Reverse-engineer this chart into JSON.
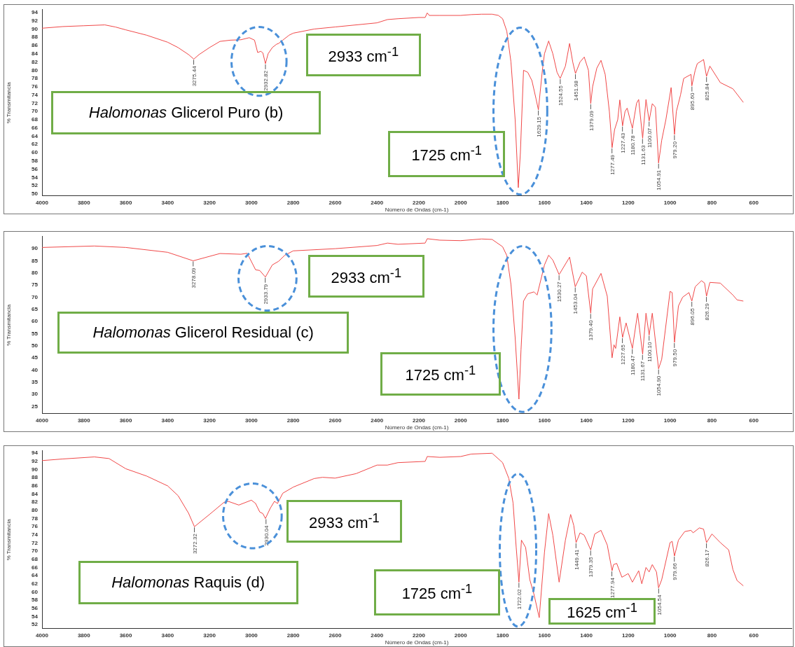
{
  "chart_data": [
    {
      "type": "line",
      "xlabel": "Número de Ondas (cm-1)",
      "ylabel": "% Transmitancia",
      "xlim": [
        4000,
        420
      ],
      "ylim": [
        49.5,
        94.7
      ],
      "xticks": [
        4000,
        3800,
        3600,
        3400,
        3200,
        3000,
        2800,
        2600,
        2400,
        2200,
        2000,
        1800,
        1600,
        1400,
        1200,
        1000,
        800,
        600
      ],
      "yticks": [
        50,
        52,
        54,
        56,
        58,
        60,
        62,
        64,
        66,
        68,
        70,
        72,
        74,
        76,
        78,
        80,
        82,
        84,
        86,
        88,
        90,
        92,
        94
      ],
      "series": [
        {
          "color": "#f04848",
          "x": [
            4000,
            3900,
            3800,
            3700,
            3650,
            3600,
            3500,
            3400,
            3350,
            3300,
            3275,
            3250,
            3200,
            3150,
            3100,
            3050,
            3010,
            2985,
            2970,
            2955,
            2945,
            2933,
            2920,
            2900,
            2880,
            2870,
            2850,
            2820,
            2800,
            2700,
            2600,
            2400,
            2350,
            2300,
            2200,
            2170,
            2160,
            2150,
            2100,
            2000,
            1950,
            1900,
            1850,
            1820,
            1800,
            1780,
            1760,
            1740,
            1725,
            1715,
            1700,
            1680,
            1660,
            1640,
            1629,
            1610,
            1600,
            1580,
            1560,
            1540,
            1525,
            1500,
            1480,
            1465,
            1452,
            1430,
            1410,
            1390,
            1379,
            1370,
            1350,
            1330,
            1310,
            1290,
            1277,
            1265,
            1250,
            1240,
            1227,
            1215,
            1205,
            1180,
            1160,
            1150,
            1131,
            1115,
            1100,
            1085,
            1070,
            1055,
            1040,
            1020,
            995,
            979,
            970,
            950,
            935,
            900,
            896,
            880,
            870,
            840,
            826,
            810,
            760,
            700,
            650
          ],
          "values": [
            90.2,
            90.6,
            90.8,
            91,
            90.5,
            89.8,
            88.5,
            86.8,
            85.5,
            83.8,
            82.7,
            83.8,
            85.5,
            87,
            87.3,
            87.4,
            87.9,
            87.3,
            84.3,
            84.6,
            84.2,
            81.6,
            84,
            85.5,
            86.3,
            86.5,
            87.3,
            88.5,
            89,
            90,
            90.5,
            91.5,
            92.3,
            92.5,
            92.8,
            92.8,
            93.9,
            93.3,
            93.3,
            93.3,
            93.5,
            93.6,
            93.6,
            93.3,
            92.5,
            89.5,
            82,
            68,
            51.5,
            60,
            80,
            79.5,
            77.5,
            73,
            70.4,
            80,
            84,
            87.1,
            84,
            79.5,
            78,
            81,
            86.5,
            82,
            79.2,
            82,
            83.2,
            80,
            71.9,
            76,
            80.5,
            82.4,
            79,
            70,
            61.2,
            65.6,
            68,
            72.8,
            66.5,
            70,
            70.8,
            65.9,
            72,
            72.9,
            63.5,
            72.9,
            67.7,
            71.9,
            71,
            57.5,
            63,
            68,
            75.8,
            64.4,
            70,
            74,
            78,
            79,
            76.2,
            80,
            81.6,
            82.6,
            78.5,
            81,
            77,
            75.5,
            72.2
          ]
        }
      ],
      "annotations": [
        "2933 cm$^{-1}$",
        "Halomonas Glicerol Puro (b)",
        "1725 cm$^{-1}$",
        {
          "text": "3275.44",
          "x": 3275.44,
          "y": 82.7
        },
        {
          "text": "2932.82",
          "x": 2932.82,
          "y": 81.6
        },
        {
          "text": "1629.15",
          "x": 1629.15,
          "y": 70.4
        },
        {
          "text": "1524.55",
          "x": 1524.55,
          "y": 78
        },
        {
          "text": "1451.98",
          "x": 1451.98,
          "y": 79.2
        },
        {
          "text": "1379.09",
          "x": 1379.09,
          "y": 71.9
        },
        {
          "text": "1277.49",
          "x": 1277.49,
          "y": 61.2
        },
        {
          "text": "1227.43",
          "x": 1227.43,
          "y": 66.5
        },
        {
          "text": "1180.78",
          "x": 1180.78,
          "y": 65.9
        },
        {
          "text": "1131.63",
          "x": 1131.63,
          "y": 63.5
        },
        {
          "text": "1100.07",
          "x": 1100.07,
          "y": 67.7
        },
        {
          "text": "1054.91",
          "x": 1054.91,
          "y": 57.5
        },
        {
          "text": "979.20",
          "x": 979.2,
          "y": 64.4
        },
        {
          "text": "895.60",
          "x": 895.6,
          "y": 76.2
        },
        {
          "text": "825.84",
          "x": 825.84,
          "y": 78.5
        }
      ]
    },
    {
      "type": "line",
      "xlabel": "Número de Ondas (cm-1)",
      "ylabel": "% Transmitancia",
      "xlim": [
        4000,
        420
      ],
      "ylim": [
        22,
        95
      ],
      "xticks": [
        4000,
        3800,
        3600,
        3400,
        3200,
        3000,
        2800,
        2600,
        2400,
        2200,
        2000,
        1800,
        1600,
        1400,
        1200,
        1000,
        800,
        600
      ],
      "yticks": [
        25,
        30,
        35,
        40,
        45,
        50,
        55,
        60,
        65,
        70,
        75,
        80,
        85,
        90
      ],
      "series": [
        {
          "color": "#f04848",
          "x": [
            4000,
            3750,
            3600,
            3400,
            3278,
            3150,
            3050,
            3020,
            2980,
            2960,
            2933,
            2900,
            2870,
            2840,
            2800,
            2600,
            2400,
            2350,
            2300,
            2170,
            2160,
            2100,
            2000,
            1900,
            1850,
            1800,
            1780,
            1760,
            1740,
            1722,
            1712,
            1700,
            1680,
            1650,
            1635,
            1600,
            1580,
            1560,
            1530,
            1480,
            1453,
            1420,
            1400,
            1379,
            1370,
            1330,
            1300,
            1277,
            1268,
            1260,
            1240,
            1227,
            1210,
            1180,
            1155,
            1131,
            1115,
            1100,
            1085,
            1055,
            1040,
            1000,
            990,
            979,
            960,
            940,
            910,
            896,
            880,
            850,
            835,
            826,
            810,
            760,
            700,
            680,
            650
          ],
          "values": [
            90.5,
            91.1,
            90.5,
            88.5,
            85,
            88,
            87.7,
            88.1,
            81.3,
            81,
            78.3,
            83.3,
            84.8,
            87.3,
            89.1,
            90,
            91.3,
            92.3,
            91.8,
            92.3,
            94.1,
            93.5,
            93.3,
            94,
            93.8,
            90.8,
            87.2,
            75.3,
            53.4,
            28,
            48.4,
            68.4,
            71.4,
            72.2,
            70.9,
            83.3,
            87.3,
            85.3,
            79.3,
            86.5,
            74.3,
            80.3,
            78.8,
            63.4,
            73.4,
            79.8,
            70.4,
            45,
            50.4,
            48.9,
            61.9,
            53.4,
            59.4,
            48.9,
            63.4,
            46.5,
            63.4,
            54.4,
            63.4,
            40.5,
            44.4,
            72.4,
            71.9,
            51.4,
            66.4,
            70,
            71.9,
            68.4,
            74.3,
            76.8,
            75.8,
            70.4,
            76.1,
            75.8,
            70.9,
            68.9,
            68.4
          ]
        }
      ],
      "annotations": [
        "2933 cm$^{-1}$",
        "Halomonas Glicerol Residual (c)",
        "1725 cm$^{-1}$",
        {
          "text": "3278.09",
          "x": 3278.09,
          "y": 85
        },
        {
          "text": "2933.79",
          "x": 2933.79,
          "y": 78.3
        },
        {
          "text": "1530.27",
          "x": 1530.27,
          "y": 79.3
        },
        {
          "text": "1453.04",
          "x": 1453.04,
          "y": 74.3
        },
        {
          "text": "1379.40",
          "x": 1379.4,
          "y": 63.4
        },
        {
          "text": "1227.65",
          "x": 1227.65,
          "y": 53.4
        },
        {
          "text": "1180.47",
          "x": 1180.47,
          "y": 48.9
        },
        {
          "text": "1131.67",
          "x": 1131.67,
          "y": 46.5
        },
        {
          "text": "1100.10",
          "x": 1100.1,
          "y": 54.4
        },
        {
          "text": "1054.90",
          "x": 1054.9,
          "y": 40.5
        },
        {
          "text": "979.50",
          "x": 979.5,
          "y": 51.4
        },
        {
          "text": "896.05",
          "x": 896.05,
          "y": 68.4
        },
        {
          "text": "826.29",
          "x": 826.29,
          "y": 70.4
        }
      ]
    },
    {
      "type": "line",
      "xlabel": "Número de Ondas (cm-1)",
      "ylabel": "% Transmitancia",
      "xlim": [
        4000,
        420
      ],
      "ylim": [
        51,
        94.6
      ],
      "xticks": [
        4000,
        3800,
        3600,
        3400,
        3200,
        3000,
        2800,
        2600,
        2400,
        2200,
        2000,
        1800,
        1600,
        1400,
        1200,
        1000,
        800,
        600
      ],
      "yticks": [
        52,
        54,
        56,
        58,
        60,
        62,
        64,
        66,
        68,
        70,
        72,
        74,
        76,
        78,
        80,
        82,
        84,
        86,
        88,
        90,
        92,
        94
      ],
      "series": [
        {
          "color": "#f04848",
          "x": [
            4000,
            3900,
            3750,
            3680,
            3600,
            3500,
            3400,
            3350,
            3300,
            3272,
            3200,
            3130,
            3110,
            3060,
            3000,
            2980,
            2960,
            2945,
            2933,
            2910,
            2890,
            2875,
            2850,
            2800,
            2700,
            2660,
            2600,
            2500,
            2400,
            2350,
            2300,
            2170,
            2160,
            2100,
            2000,
            1950,
            1850,
            1800,
            1770,
            1750,
            1735,
            1722,
            1710,
            1690,
            1670,
            1650,
            1625,
            1600,
            1580,
            1560,
            1530,
            1500,
            1475,
            1460,
            1449,
            1430,
            1410,
            1379,
            1360,
            1330,
            1300,
            1277,
            1270,
            1255,
            1230,
            1200,
            1180,
            1150,
            1135,
            1115,
            1100,
            1085,
            1065,
            1055,
            1040,
            1000,
            990,
            979,
            960,
            930,
            900,
            890,
            860,
            840,
            826,
            800,
            760,
            720,
            700,
            680,
            650
          ],
          "values": [
            92.2,
            92.6,
            93.1,
            92.7,
            90.2,
            88.4,
            86,
            83.6,
            79.3,
            76,
            79,
            82,
            82.2,
            81.3,
            82.5,
            81.7,
            79.6,
            79.2,
            78,
            80.5,
            82.2,
            81.7,
            84.2,
            85.7,
            87.8,
            88.1,
            87.9,
            89,
            91.1,
            91.1,
            91.7,
            92,
            93.2,
            93,
            93.2,
            93.8,
            94,
            91.7,
            87.8,
            81.8,
            70.9,
            62.4,
            72.7,
            70.9,
            63,
            59.4,
            53.7,
            69.7,
            79.2,
            73.9,
            62.4,
            72.7,
            79,
            76.3,
            72.1,
            74.5,
            73.9,
            70.3,
            74.2,
            75.1,
            71.5,
            65.2,
            66.7,
            67,
            63.6,
            64.5,
            62.4,
            65.2,
            62,
            66,
            64.9,
            66.7,
            64.9,
            61,
            63,
            72.1,
            72.4,
            68.8,
            72.7,
            74.8,
            75.1,
            74.5,
            75.7,
            75.4,
            72.1,
            74.2,
            72.1,
            70.3,
            65.5,
            62.8,
            61.5
          ]
        }
      ],
      "annotations": [
        "2933 cm$^{-1}$",
        "Halomonas Raquis (d)",
        "1725 cm$^{-1}$",
        "1625 cm$^{-1}$",
        {
          "text": "3272.32",
          "x": 3272.32,
          "y": 76
        },
        {
          "text": "2930.04",
          "x": 2930.04,
          "y": 78
        },
        {
          "text": "1722.02",
          "x": 1722.02,
          "y": 62.4
        },
        {
          "text": "1449.41",
          "x": 1449.41,
          "y": 72.1
        },
        {
          "text": "1379.35",
          "x": 1379.35,
          "y": 70.3
        },
        {
          "text": "1277.94",
          "x": 1277.94,
          "y": 65.2
        },
        {
          "text": "1054.54",
          "x": 1054.54,
          "y": 61
        },
        {
          "text": "979.66",
          "x": 979.66,
          "y": 68.8
        },
        {
          "text": "826.17",
          "x": 826.17,
          "y": 72.1
        }
      ]
    }
  ]
}
